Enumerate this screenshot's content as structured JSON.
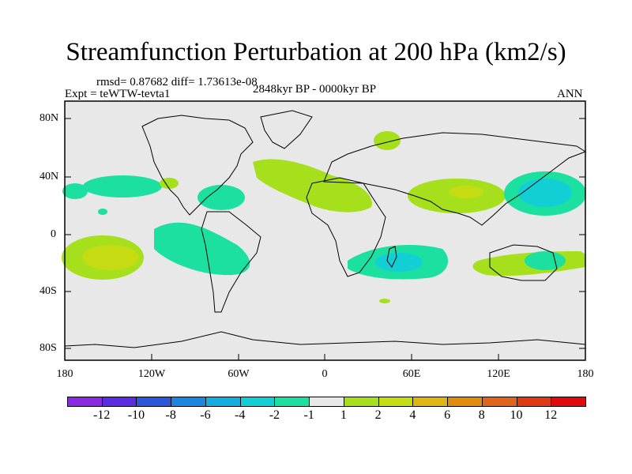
{
  "title": "Streamfunction Perturbation at 200 hPa (km2/s)",
  "stats": "rmsd= 0.87682  diff= 1.73613e-08",
  "experiment": "Expt = teWTW-tevta1",
  "period": "2848kyr BP - 0000kyr BP",
  "season": "ANN",
  "lat_labels": [
    "80N",
    "40N",
    "0",
    "40S",
    "80S"
  ],
  "lon_labels": [
    "180",
    "120W",
    "60W",
    "0",
    "60E",
    "120E",
    "180"
  ],
  "colorbar": {
    "labels": [
      "-12",
      "-10",
      "-8",
      "-6",
      "-4",
      "-2",
      "-1",
      "1",
      "2",
      "4",
      "6",
      "8",
      "10",
      "12"
    ],
    "colors": [
      "#8a2be2",
      "#5a2de0",
      "#2a58d8",
      "#1a86e0",
      "#13aee0",
      "#12cfd6",
      "#1be0a0",
      "#e8e8e8",
      "#a6e01c",
      "#c6dc12",
      "#e0b412",
      "#e08a10",
      "#e0641a",
      "#e03a14",
      "#e00a0a"
    ]
  },
  "colors": {
    "ocean_bg": "#e8e8e8",
    "coast": "#000000"
  },
  "map_features": {
    "continents": [
      "North America",
      "South America",
      "Greenland",
      "Africa",
      "Europe",
      "Asia",
      "Australia",
      "Antarctica"
    ]
  }
}
